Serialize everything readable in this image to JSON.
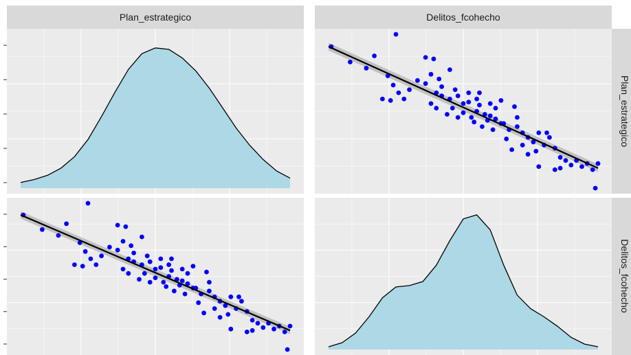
{
  "strips": {
    "col1": "Plan_estrategico",
    "col2": "Delitos_fcohecho",
    "row1": "Plan_estrategico",
    "row2": "Delitos_fcohecho"
  },
  "colors": {
    "panel_bg": "#ebebeb",
    "strip_bg": "#d9d9d9",
    "grid_major": "#ffffff",
    "density_fill": "#add8e6",
    "points": "#0000ff",
    "fit_line": "#000000",
    "ci_band": "#b3b3b3"
  },
  "chart_data": [
    {
      "type": "area",
      "title": "",
      "panel": "Plan_estrategico / Plan_estrategico",
      "variable": "Plan_estrategico",
      "x": [
        0.0,
        0.05,
        0.1,
        0.15,
        0.2,
        0.25,
        0.3,
        0.35,
        0.4,
        0.45,
        0.5,
        0.55,
        0.6,
        0.65,
        0.7,
        0.75,
        0.8,
        0.85,
        0.9,
        0.95,
        1.0
      ],
      "y": [
        0.04,
        0.06,
        0.09,
        0.14,
        0.22,
        0.34,
        0.5,
        0.67,
        0.83,
        0.94,
        0.98,
        0.97,
        0.91,
        0.82,
        0.7,
        0.56,
        0.42,
        0.3,
        0.2,
        0.12,
        0.07
      ]
    },
    {
      "type": "scatter",
      "title": "",
      "panel": "Delitos_fcohecho / Plan_estrategico",
      "xlabel": "Delitos_fcohecho",
      "ylabel": "Plan_estrategico",
      "smooth": "lm",
      "fit_line": {
        "x": [
          0.0,
          1.0
        ],
        "y": [
          0.92,
          0.13
        ]
      },
      "points": [
        {
          "x": 0.01,
          "y": 0.92
        },
        {
          "x": 0.08,
          "y": 0.82
        },
        {
          "x": 0.14,
          "y": 0.78
        },
        {
          "x": 0.17,
          "y": 0.86
        },
        {
          "x": 0.25,
          "y": 1.0
        },
        {
          "x": 0.22,
          "y": 0.73
        },
        {
          "x": 0.24,
          "y": 0.67
        },
        {
          "x": 0.26,
          "y": 0.62
        },
        {
          "x": 0.23,
          "y": 0.57
        },
        {
          "x": 0.2,
          "y": 0.58
        },
        {
          "x": 0.28,
          "y": 0.58
        },
        {
          "x": 0.3,
          "y": 0.64
        },
        {
          "x": 0.36,
          "y": 0.85
        },
        {
          "x": 0.39,
          "y": 0.84
        },
        {
          "x": 0.38,
          "y": 0.74
        },
        {
          "x": 0.36,
          "y": 0.68
        },
        {
          "x": 0.41,
          "y": 0.71
        },
        {
          "x": 0.45,
          "y": 0.77
        },
        {
          "x": 0.4,
          "y": 0.62
        },
        {
          "x": 0.42,
          "y": 0.6
        },
        {
          "x": 0.45,
          "y": 0.58
        },
        {
          "x": 0.47,
          "y": 0.64
        },
        {
          "x": 0.5,
          "y": 0.55
        },
        {
          "x": 0.52,
          "y": 0.62
        },
        {
          "x": 0.55,
          "y": 0.58
        },
        {
          "x": 0.38,
          "y": 0.55
        },
        {
          "x": 0.4,
          "y": 0.52
        },
        {
          "x": 0.44,
          "y": 0.48
        },
        {
          "x": 0.46,
          "y": 0.52
        },
        {
          "x": 0.48,
          "y": 0.46
        },
        {
          "x": 0.5,
          "y": 0.49
        },
        {
          "x": 0.53,
          "y": 0.46
        },
        {
          "x": 0.55,
          "y": 0.5
        },
        {
          "x": 0.56,
          "y": 0.54
        },
        {
          "x": 0.58,
          "y": 0.48
        },
        {
          "x": 0.6,
          "y": 0.55
        },
        {
          "x": 0.62,
          "y": 0.52
        },
        {
          "x": 0.64,
          "y": 0.57
        },
        {
          "x": 0.59,
          "y": 0.44
        },
        {
          "x": 0.62,
          "y": 0.45
        },
        {
          "x": 0.57,
          "y": 0.4
        },
        {
          "x": 0.61,
          "y": 0.38
        },
        {
          "x": 0.65,
          "y": 0.42
        },
        {
          "x": 0.67,
          "y": 0.38
        },
        {
          "x": 0.7,
          "y": 0.46
        },
        {
          "x": 0.69,
          "y": 0.53
        },
        {
          "x": 0.66,
          "y": 0.32
        },
        {
          "x": 0.68,
          "y": 0.25
        },
        {
          "x": 0.72,
          "y": 0.36
        },
        {
          "x": 0.74,
          "y": 0.33
        },
        {
          "x": 0.76,
          "y": 0.3
        },
        {
          "x": 0.72,
          "y": 0.28
        },
        {
          "x": 0.78,
          "y": 0.36
        },
        {
          "x": 0.81,
          "y": 0.36
        },
        {
          "x": 0.82,
          "y": 0.33
        },
        {
          "x": 0.8,
          "y": 0.28
        },
        {
          "x": 0.84,
          "y": 0.26
        },
        {
          "x": 0.77,
          "y": 0.24
        },
        {
          "x": 0.74,
          "y": 0.22
        },
        {
          "x": 0.78,
          "y": 0.14
        },
        {
          "x": 0.86,
          "y": 0.2
        },
        {
          "x": 0.88,
          "y": 0.18
        },
        {
          "x": 0.84,
          "y": 0.12
        },
        {
          "x": 0.86,
          "y": 0.13
        },
        {
          "x": 0.9,
          "y": 0.15
        },
        {
          "x": 0.92,
          "y": 0.18
        },
        {
          "x": 0.94,
          "y": 0.14
        },
        {
          "x": 0.96,
          "y": 0.16
        },
        {
          "x": 0.98,
          "y": 0.12
        },
        {
          "x": 1.0,
          "y": 0.16
        },
        {
          "x": 0.99,
          "y": 0.0
        },
        {
          "x": 0.64,
          "y": 0.42
        },
        {
          "x": 0.52,
          "y": 0.56
        },
        {
          "x": 0.48,
          "y": 0.6
        },
        {
          "x": 0.56,
          "y": 0.62
        },
        {
          "x": 0.54,
          "y": 0.43
        },
        {
          "x": 0.6,
          "y": 0.47
        },
        {
          "x": 0.7,
          "y": 0.4
        },
        {
          "x": 0.33,
          "y": 0.7
        },
        {
          "x": 0.42,
          "y": 0.66
        }
      ]
    },
    {
      "type": "scatter",
      "title": "",
      "panel": "Plan_estrategico / Delitos_fcohecho",
      "xlabel": "Plan_estrategico",
      "ylabel": "Delitos_fcohecho",
      "smooth": "lm",
      "fit_line": {
        "x": [
          0.0,
          1.0
        ],
        "y": [
          0.92,
          0.13
        ]
      },
      "points": [
        {
          "x": 0.01,
          "y": 0.92
        },
        {
          "x": 0.08,
          "y": 0.82
        },
        {
          "x": 0.14,
          "y": 0.78
        },
        {
          "x": 0.17,
          "y": 0.86
        },
        {
          "x": 0.25,
          "y": 1.0
        },
        {
          "x": 0.22,
          "y": 0.73
        },
        {
          "x": 0.24,
          "y": 0.67
        },
        {
          "x": 0.26,
          "y": 0.62
        },
        {
          "x": 0.23,
          "y": 0.57
        },
        {
          "x": 0.2,
          "y": 0.58
        },
        {
          "x": 0.28,
          "y": 0.58
        },
        {
          "x": 0.3,
          "y": 0.64
        },
        {
          "x": 0.36,
          "y": 0.85
        },
        {
          "x": 0.39,
          "y": 0.84
        },
        {
          "x": 0.38,
          "y": 0.74
        },
        {
          "x": 0.36,
          "y": 0.68
        },
        {
          "x": 0.41,
          "y": 0.71
        },
        {
          "x": 0.45,
          "y": 0.77
        },
        {
          "x": 0.4,
          "y": 0.62
        },
        {
          "x": 0.42,
          "y": 0.6
        },
        {
          "x": 0.45,
          "y": 0.58
        },
        {
          "x": 0.47,
          "y": 0.64
        },
        {
          "x": 0.5,
          "y": 0.55
        },
        {
          "x": 0.52,
          "y": 0.62
        },
        {
          "x": 0.55,
          "y": 0.58
        },
        {
          "x": 0.38,
          "y": 0.55
        },
        {
          "x": 0.4,
          "y": 0.52
        },
        {
          "x": 0.44,
          "y": 0.48
        },
        {
          "x": 0.46,
          "y": 0.52
        },
        {
          "x": 0.48,
          "y": 0.46
        },
        {
          "x": 0.5,
          "y": 0.49
        },
        {
          "x": 0.53,
          "y": 0.46
        },
        {
          "x": 0.55,
          "y": 0.5
        },
        {
          "x": 0.56,
          "y": 0.54
        },
        {
          "x": 0.58,
          "y": 0.48
        },
        {
          "x": 0.6,
          "y": 0.55
        },
        {
          "x": 0.62,
          "y": 0.52
        },
        {
          "x": 0.64,
          "y": 0.57
        },
        {
          "x": 0.59,
          "y": 0.44
        },
        {
          "x": 0.62,
          "y": 0.45
        },
        {
          "x": 0.57,
          "y": 0.4
        },
        {
          "x": 0.61,
          "y": 0.38
        },
        {
          "x": 0.65,
          "y": 0.42
        },
        {
          "x": 0.67,
          "y": 0.38
        },
        {
          "x": 0.7,
          "y": 0.46
        },
        {
          "x": 0.69,
          "y": 0.53
        },
        {
          "x": 0.66,
          "y": 0.32
        },
        {
          "x": 0.68,
          "y": 0.25
        },
        {
          "x": 0.72,
          "y": 0.36
        },
        {
          "x": 0.74,
          "y": 0.33
        },
        {
          "x": 0.76,
          "y": 0.3
        },
        {
          "x": 0.72,
          "y": 0.28
        },
        {
          "x": 0.78,
          "y": 0.36
        },
        {
          "x": 0.81,
          "y": 0.36
        },
        {
          "x": 0.82,
          "y": 0.33
        },
        {
          "x": 0.8,
          "y": 0.28
        },
        {
          "x": 0.84,
          "y": 0.26
        },
        {
          "x": 0.77,
          "y": 0.24
        },
        {
          "x": 0.74,
          "y": 0.22
        },
        {
          "x": 0.78,
          "y": 0.14
        },
        {
          "x": 0.86,
          "y": 0.2
        },
        {
          "x": 0.88,
          "y": 0.18
        },
        {
          "x": 0.84,
          "y": 0.12
        },
        {
          "x": 0.86,
          "y": 0.13
        },
        {
          "x": 0.9,
          "y": 0.15
        },
        {
          "x": 0.92,
          "y": 0.18
        },
        {
          "x": 0.94,
          "y": 0.14
        },
        {
          "x": 0.96,
          "y": 0.16
        },
        {
          "x": 0.98,
          "y": 0.12
        },
        {
          "x": 1.0,
          "y": 0.16
        },
        {
          "x": 0.99,
          "y": 0.0
        },
        {
          "x": 0.64,
          "y": 0.42
        },
        {
          "x": 0.52,
          "y": 0.56
        },
        {
          "x": 0.48,
          "y": 0.6
        },
        {
          "x": 0.56,
          "y": 0.62
        },
        {
          "x": 0.54,
          "y": 0.43
        },
        {
          "x": 0.6,
          "y": 0.47
        },
        {
          "x": 0.7,
          "y": 0.4
        },
        {
          "x": 0.33,
          "y": 0.7
        },
        {
          "x": 0.42,
          "y": 0.66
        }
      ]
    },
    {
      "type": "area",
      "title": "",
      "panel": "Delitos_fcohecho / Delitos_fcohecho",
      "variable": "Delitos_fcohecho",
      "x": [
        0.0,
        0.05,
        0.1,
        0.15,
        0.2,
        0.25,
        0.3,
        0.35,
        0.4,
        0.45,
        0.5,
        0.55,
        0.6,
        0.65,
        0.7,
        0.75,
        0.8,
        0.85,
        0.9,
        0.95,
        1.0
      ],
      "y": [
        0.02,
        0.05,
        0.12,
        0.24,
        0.38,
        0.46,
        0.47,
        0.5,
        0.62,
        0.8,
        0.96,
        0.99,
        0.88,
        0.62,
        0.4,
        0.3,
        0.24,
        0.17,
        0.09,
        0.04,
        0.02
      ]
    }
  ]
}
